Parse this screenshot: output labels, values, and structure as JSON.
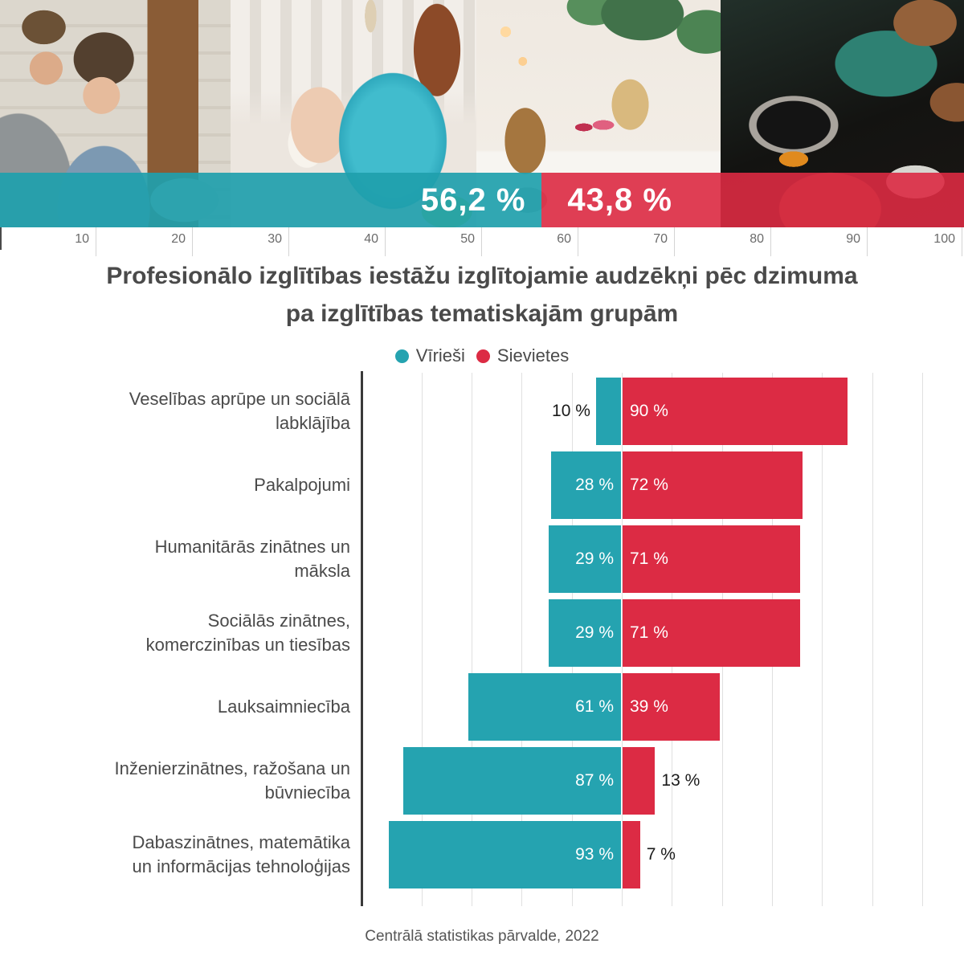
{
  "colors": {
    "male": "#25a3b0",
    "female": "#dc2b44",
    "band_male": "rgba(31,160,173,0.92)",
    "band_female": "rgba(219,42,66,0.90)",
    "title_text": "#4a4a4a",
    "gridline": "#e0e0e0",
    "axis": "#3a3a3a"
  },
  "header": {
    "photos": [
      {
        "name": "office-consultation-photo",
        "alt": "Two smiling people working together at a laptop by a white brick wall"
      },
      {
        "name": "facial-treatment-photo",
        "alt": "Person with a teal head wrap receiving a white facial mask treatment"
      },
      {
        "name": "salon-reception-photo",
        "alt": "Two women talking at a bright salon reception counter with hanging plants"
      },
      {
        "name": "electronics-repair-photo",
        "alt": "Hands repairing a disassembled phone with an exposed circuit board"
      }
    ],
    "split_bar": {
      "male_pct": 56.2,
      "female_pct": 43.8,
      "male_label": "56,2 %",
      "female_label": "43,8 %"
    },
    "ruler_ticks": [
      10,
      20,
      30,
      40,
      50,
      60,
      70,
      80,
      90,
      100
    ]
  },
  "title": {
    "line1": "Profesionālo izglītības iestāžu izglītojamie audzēkņi pēc dzimuma",
    "line2": "pa izglītības tematiskajām grupām"
  },
  "legend": {
    "items": [
      {
        "label": "Vīrieši",
        "color": "#25a3b0"
      },
      {
        "label": "Sievietes",
        "color": "#dc2b44"
      }
    ]
  },
  "chart_data": {
    "type": "bar",
    "orientation": "horizontal-diverging",
    "title": "Profesionālo izglītības iestāžu izglītojamie audzēkņi pēc dzimuma pa izglītības tematiskajām grupām",
    "categories": [
      "Veselības aprūpe un sociālā\nlabklājība",
      "Pakalpojumi",
      "Humanitārās zinātnes un\nmāksla",
      "Sociālās zinātnes,\nkomerczinības un tiesības",
      "Lauksaimniecība",
      "Inženierzinātnes, ražošana un\nbūvniecība",
      "Dabaszinātnes, matemātika\nun informācijas tehnoloģijas"
    ],
    "series": [
      {
        "name": "Vīrieši",
        "color": "#25a3b0",
        "values": [
          10,
          28,
          29,
          29,
          61,
          87,
          93
        ]
      },
      {
        "name": "Sievietes",
        "color": "#dc2b44",
        "values": [
          90,
          72,
          71,
          71,
          39,
          13,
          7
        ]
      }
    ],
    "value_suffix": " %",
    "unit": "percent",
    "xlim": [
      -100,
      100
    ],
    "grid": "vertical gridlines every 20 %",
    "legend_position": "top-center",
    "overall_split": {
      "male_pct_label": "56,2 %",
      "female_pct_label": "43,8 %"
    }
  },
  "footer": {
    "source": "Centrālā statistikas pārvalde, 2022"
  }
}
